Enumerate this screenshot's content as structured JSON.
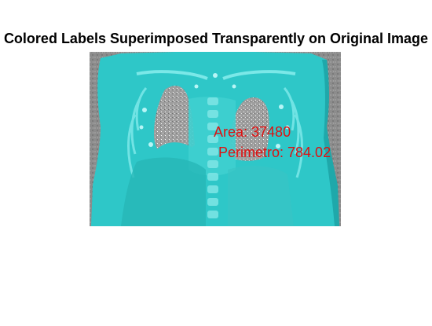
{
  "figure": {
    "title": "Colored Labels Superimposed Transparently on Original Image"
  },
  "image": {
    "icon": "ct-chest-coronal-scan-icon",
    "overlay_color": "#2ec9c9",
    "background_gray": "#8a8a8a"
  },
  "annotations": {
    "area_label": "Area: 37480",
    "perimeter_label": "Perimetro: 784.02",
    "color": "#e01010"
  }
}
